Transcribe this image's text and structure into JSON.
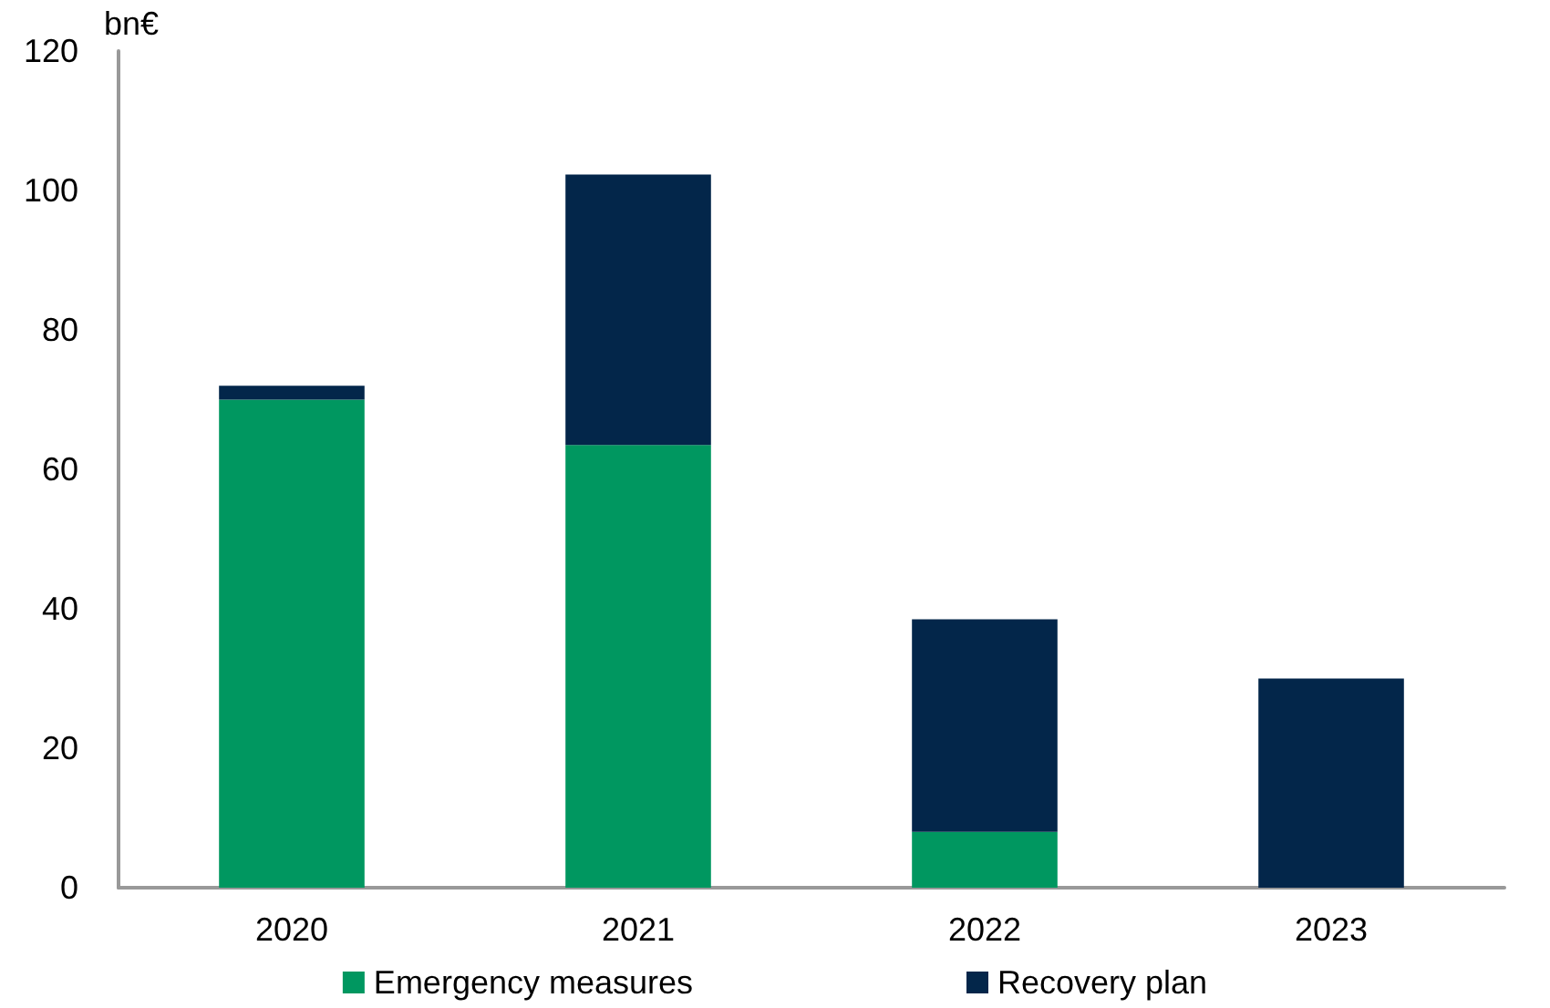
{
  "chart_data": {
    "type": "bar",
    "ylabel": "bn€",
    "categories": [
      "2020",
      "2021",
      "2022",
      "2023"
    ],
    "series": [
      {
        "name": "Emergency measures",
        "color": "#009760",
        "values": [
          70,
          63.5,
          8,
          0
        ]
      },
      {
        "name": "Recovery plan",
        "color": "#03264a",
        "values": [
          2,
          38.8,
          30.5,
          30
        ]
      }
    ],
    "stacked": true,
    "ylim": [
      0,
      120
    ],
    "yticks": [
      0,
      20,
      40,
      60,
      80,
      100,
      120
    ],
    "grid": false,
    "legend": "bottom"
  }
}
